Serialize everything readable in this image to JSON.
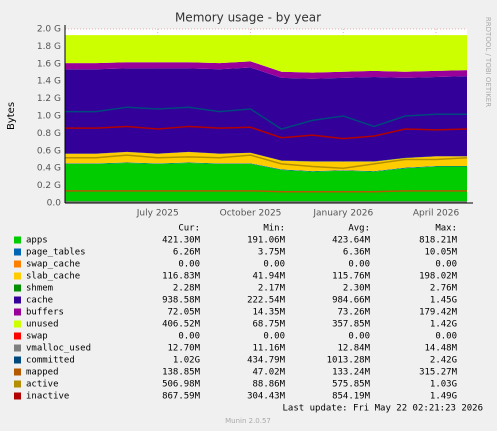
{
  "chart_data": {
    "type": "area",
    "title": "Memory usage - by year",
    "y_label": "Bytes",
    "side_text": "RRDTOOL / TOBI OETIKER",
    "x": [
      "2025-04",
      "2025-05",
      "2025-06",
      "2025-07",
      "2025-08",
      "2025-09",
      "2025-10",
      "2025-11",
      "2025-12",
      "2026-01",
      "2026-02",
      "2026-03",
      "2026-04",
      "2026-05"
    ],
    "xlim": [
      "2025-04",
      "2026-05"
    ],
    "xticks": [
      {
        "value": "2025-07",
        "label": "July 2025"
      },
      {
        "value": "2025-10",
        "label": "October 2025"
      },
      {
        "value": "2026-01",
        "label": "January 2026"
      },
      {
        "value": "2026-04",
        "label": "April 2026"
      }
    ],
    "ylim": [
      0,
      2.0
    ],
    "yticks": [
      {
        "value": 0,
        "label": "0.0"
      },
      {
        "value": 0.2,
        "label": "0.2 G"
      },
      {
        "value": 0.4,
        "label": "0.4 G"
      },
      {
        "value": 0.6,
        "label": "0.6 G"
      },
      {
        "value": 0.8,
        "label": "0.8 G"
      },
      {
        "value": 1.0,
        "label": "1.0 G"
      },
      {
        "value": 1.2,
        "label": "1.2 G"
      },
      {
        "value": 1.4,
        "label": "1.4 G"
      },
      {
        "value": 1.6,
        "label": "1.6 G"
      },
      {
        "value": 1.8,
        "label": "1.8 G"
      },
      {
        "value": 2.0,
        "label": "2.0 G"
      }
    ],
    "grid": true,
    "series": [
      {
        "name": "apps",
        "color": "#00cc00",
        "style": "area",
        "values": [
          0.45,
          0.45,
          0.46,
          0.45,
          0.46,
          0.45,
          0.45,
          0.38,
          0.36,
          0.37,
          0.36,
          0.4,
          0.42,
          0.42
        ]
      },
      {
        "name": "page_tables",
        "color": "#0066b3",
        "style": "area",
        "values": [
          0.006,
          0.006,
          0.006,
          0.006,
          0.006,
          0.006,
          0.006,
          0.006,
          0.006,
          0.006,
          0.006,
          0.006,
          0.006,
          0.006
        ]
      },
      {
        "name": "swap_cache",
        "color": "#ff8000",
        "style": "area",
        "values": [
          0,
          0,
          0,
          0,
          0,
          0,
          0,
          0,
          0,
          0,
          0,
          0,
          0,
          0
        ]
      },
      {
        "name": "slab_cache",
        "color": "#ffcc00",
        "style": "area",
        "values": [
          0.11,
          0.11,
          0.12,
          0.11,
          0.12,
          0.11,
          0.12,
          0.1,
          0.11,
          0.1,
          0.11,
          0.11,
          0.11,
          0.11
        ]
      },
      {
        "name": "shmem",
        "color": "#008f00",
        "style": "area",
        "values": [
          0.002,
          0.002,
          0.002,
          0.002,
          0.002,
          0.002,
          0.002,
          0.002,
          0.002,
          0.002,
          0.002,
          0.002,
          0.002,
          0.002
        ]
      },
      {
        "name": "cache",
        "color": "#330099",
        "style": "area",
        "values": [
          0.97,
          0.97,
          0.96,
          0.98,
          0.96,
          0.97,
          0.98,
          0.95,
          0.95,
          0.96,
          0.97,
          0.92,
          0.91,
          0.92
        ]
      },
      {
        "name": "buffers",
        "color": "#990099",
        "style": "area",
        "values": [
          0.07,
          0.07,
          0.07,
          0.07,
          0.07,
          0.07,
          0.07,
          0.07,
          0.07,
          0.07,
          0.07,
          0.07,
          0.07,
          0.07
        ]
      },
      {
        "name": "unused",
        "color": "#ccff00",
        "style": "area",
        "values": [
          0.322,
          0.322,
          0.312,
          0.312,
          0.312,
          0.322,
          0.302,
          0.422,
          0.432,
          0.422,
          0.412,
          0.422,
          0.412,
          0.402
        ]
      },
      {
        "name": "swap",
        "color": "#ff0000",
        "style": "area",
        "values": [
          0,
          0,
          0,
          0,
          0,
          0,
          0,
          0,
          0,
          0,
          0,
          0,
          0,
          0
        ]
      },
      {
        "name": "vmalloc_used",
        "color": "#808080",
        "style": "line",
        "values": [
          0.012,
          0.012,
          0.012,
          0.012,
          0.012,
          0.012,
          0.012,
          0.012,
          0.012,
          0.012,
          0.012,
          0.012,
          0.012,
          0.012
        ]
      },
      {
        "name": "committed",
        "color": "#00487d",
        "style": "line",
        "values": [
          1.05,
          1.05,
          1.1,
          1.08,
          1.1,
          1.05,
          1.08,
          0.85,
          0.95,
          1.0,
          0.88,
          1.0,
          1.02,
          1.02
        ]
      },
      {
        "name": "mapped",
        "color": "#b35a00",
        "style": "line",
        "values": [
          0.14,
          0.14,
          0.14,
          0.14,
          0.14,
          0.14,
          0.14,
          0.13,
          0.13,
          0.13,
          0.13,
          0.14,
          0.14,
          0.14
        ]
      },
      {
        "name": "active",
        "color": "#b38f00",
        "style": "line",
        "values": [
          0.52,
          0.52,
          0.55,
          0.52,
          0.53,
          0.52,
          0.55,
          0.45,
          0.42,
          0.4,
          0.45,
          0.5,
          0.5,
          0.52
        ]
      },
      {
        "name": "inactive",
        "color": "#b30000",
        "style": "line",
        "values": [
          0.86,
          0.86,
          0.88,
          0.85,
          0.88,
          0.86,
          0.87,
          0.75,
          0.78,
          0.74,
          0.77,
          0.85,
          0.84,
          0.85
        ]
      }
    ],
    "legend_table": {
      "columns": [
        "Cur:",
        "Min:",
        "Avg:",
        "Max:"
      ],
      "rows": [
        [
          "421.30M",
          "191.06M",
          "423.64M",
          "818.21M"
        ],
        [
          "6.26M",
          "3.75M",
          "6.36M",
          "10.05M"
        ],
        [
          "0.00",
          "0.00",
          "0.00",
          "0.00"
        ],
        [
          "116.83M",
          "41.94M",
          "115.76M",
          "198.02M"
        ],
        [
          "2.28M",
          "2.17M",
          "2.30M",
          "2.76M"
        ],
        [
          "938.58M",
          "222.54M",
          "984.66M",
          "1.45G"
        ],
        [
          "72.05M",
          "14.35M",
          "73.26M",
          "179.42M"
        ],
        [
          "406.52M",
          "68.75M",
          "357.85M",
          "1.42G"
        ],
        [
          "0.00",
          "0.00",
          "0.00",
          "0.00"
        ],
        [
          "12.70M",
          "11.16M",
          "12.84M",
          "14.48M"
        ],
        [
          "1.02G",
          "434.79M",
          "1013.28M",
          "2.42G"
        ],
        [
          "138.85M",
          "47.02M",
          "133.24M",
          "315.27M"
        ],
        [
          "506.98M",
          "88.86M",
          "575.85M",
          "1.03G"
        ],
        [
          "867.59M",
          "304.43M",
          "854.19M",
          "1.49G"
        ]
      ]
    },
    "last_update": "Last update: Fri May 22 02:21:23 2026",
    "footer": "Munin 2.0.57"
  }
}
